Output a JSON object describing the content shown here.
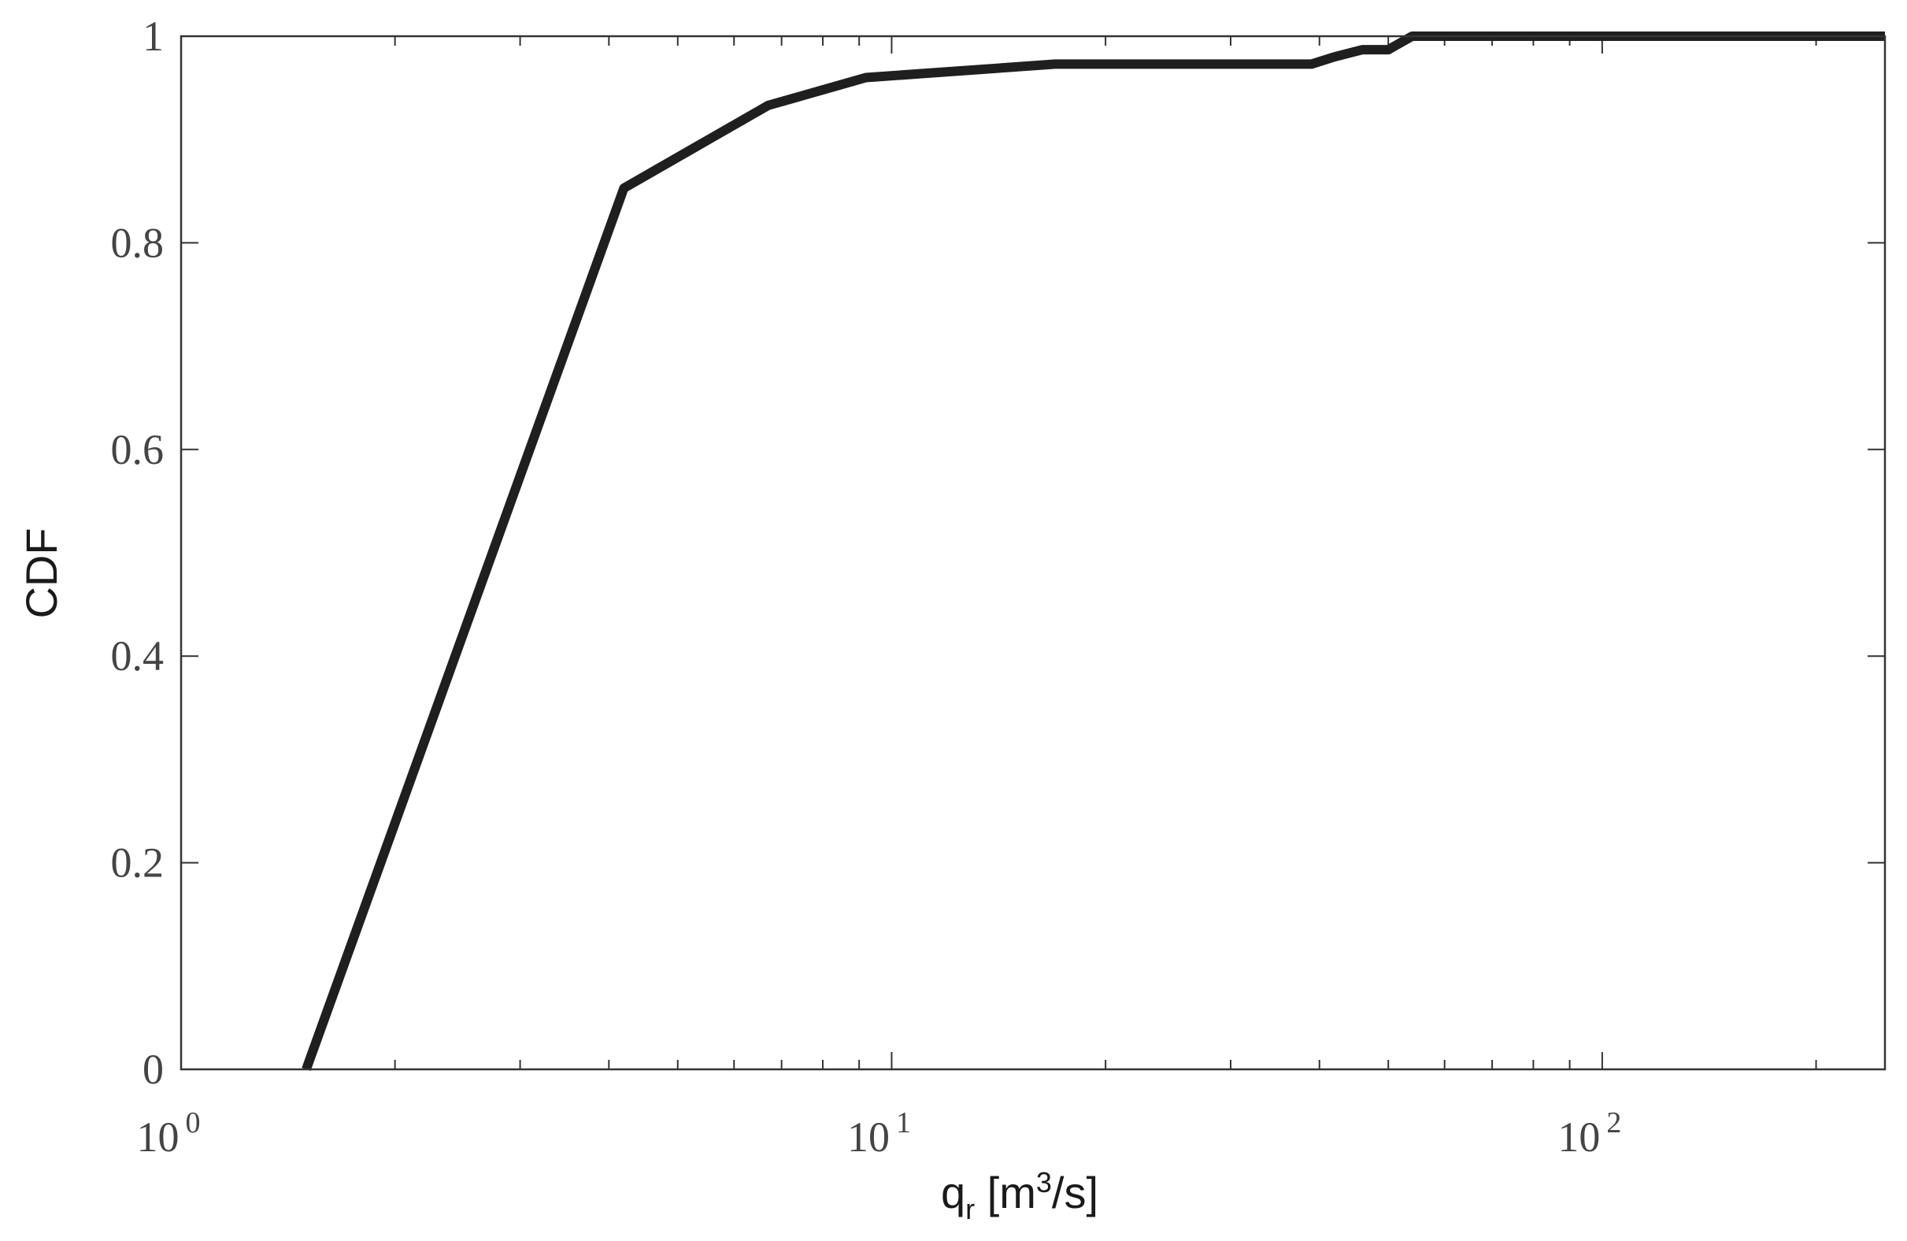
{
  "chart_data": {
    "type": "line",
    "title": "",
    "xlabel": {
      "base": "q",
      "sub": "r",
      "mid": " [m",
      "sup": "3",
      "end": "/s]"
    },
    "ylabel": "CDF",
    "xscale": "log",
    "xlim": [
      1,
      250
    ],
    "ylim": [
      0,
      1
    ],
    "grid": false,
    "legend": "none",
    "x_ticks": [
      {
        "value": 1,
        "base": "10",
        "exp": "0"
      },
      {
        "value": 10,
        "base": "10",
        "exp": "1"
      },
      {
        "value": 100,
        "base": "10",
        "exp": "2"
      }
    ],
    "y_ticks": [
      {
        "value": 0,
        "label": "0"
      },
      {
        "value": 0.2,
        "label": "0.2"
      },
      {
        "value": 0.4,
        "label": "0.4"
      },
      {
        "value": 0.6,
        "label": "0.6"
      },
      {
        "value": 0.8,
        "label": "0.8"
      },
      {
        "value": 1,
        "label": "1"
      }
    ],
    "series": [
      {
        "color": "#1f1f1f",
        "x": [
          1.5,
          4.2,
          6.7,
          9.2,
          17,
          39,
          42,
          46,
          50,
          54,
          250
        ],
        "y": [
          0,
          0.853,
          0.933,
          0.96,
          0.973,
          0.973,
          0.98,
          0.987,
          0.987,
          1,
          1
        ]
      }
    ]
  }
}
